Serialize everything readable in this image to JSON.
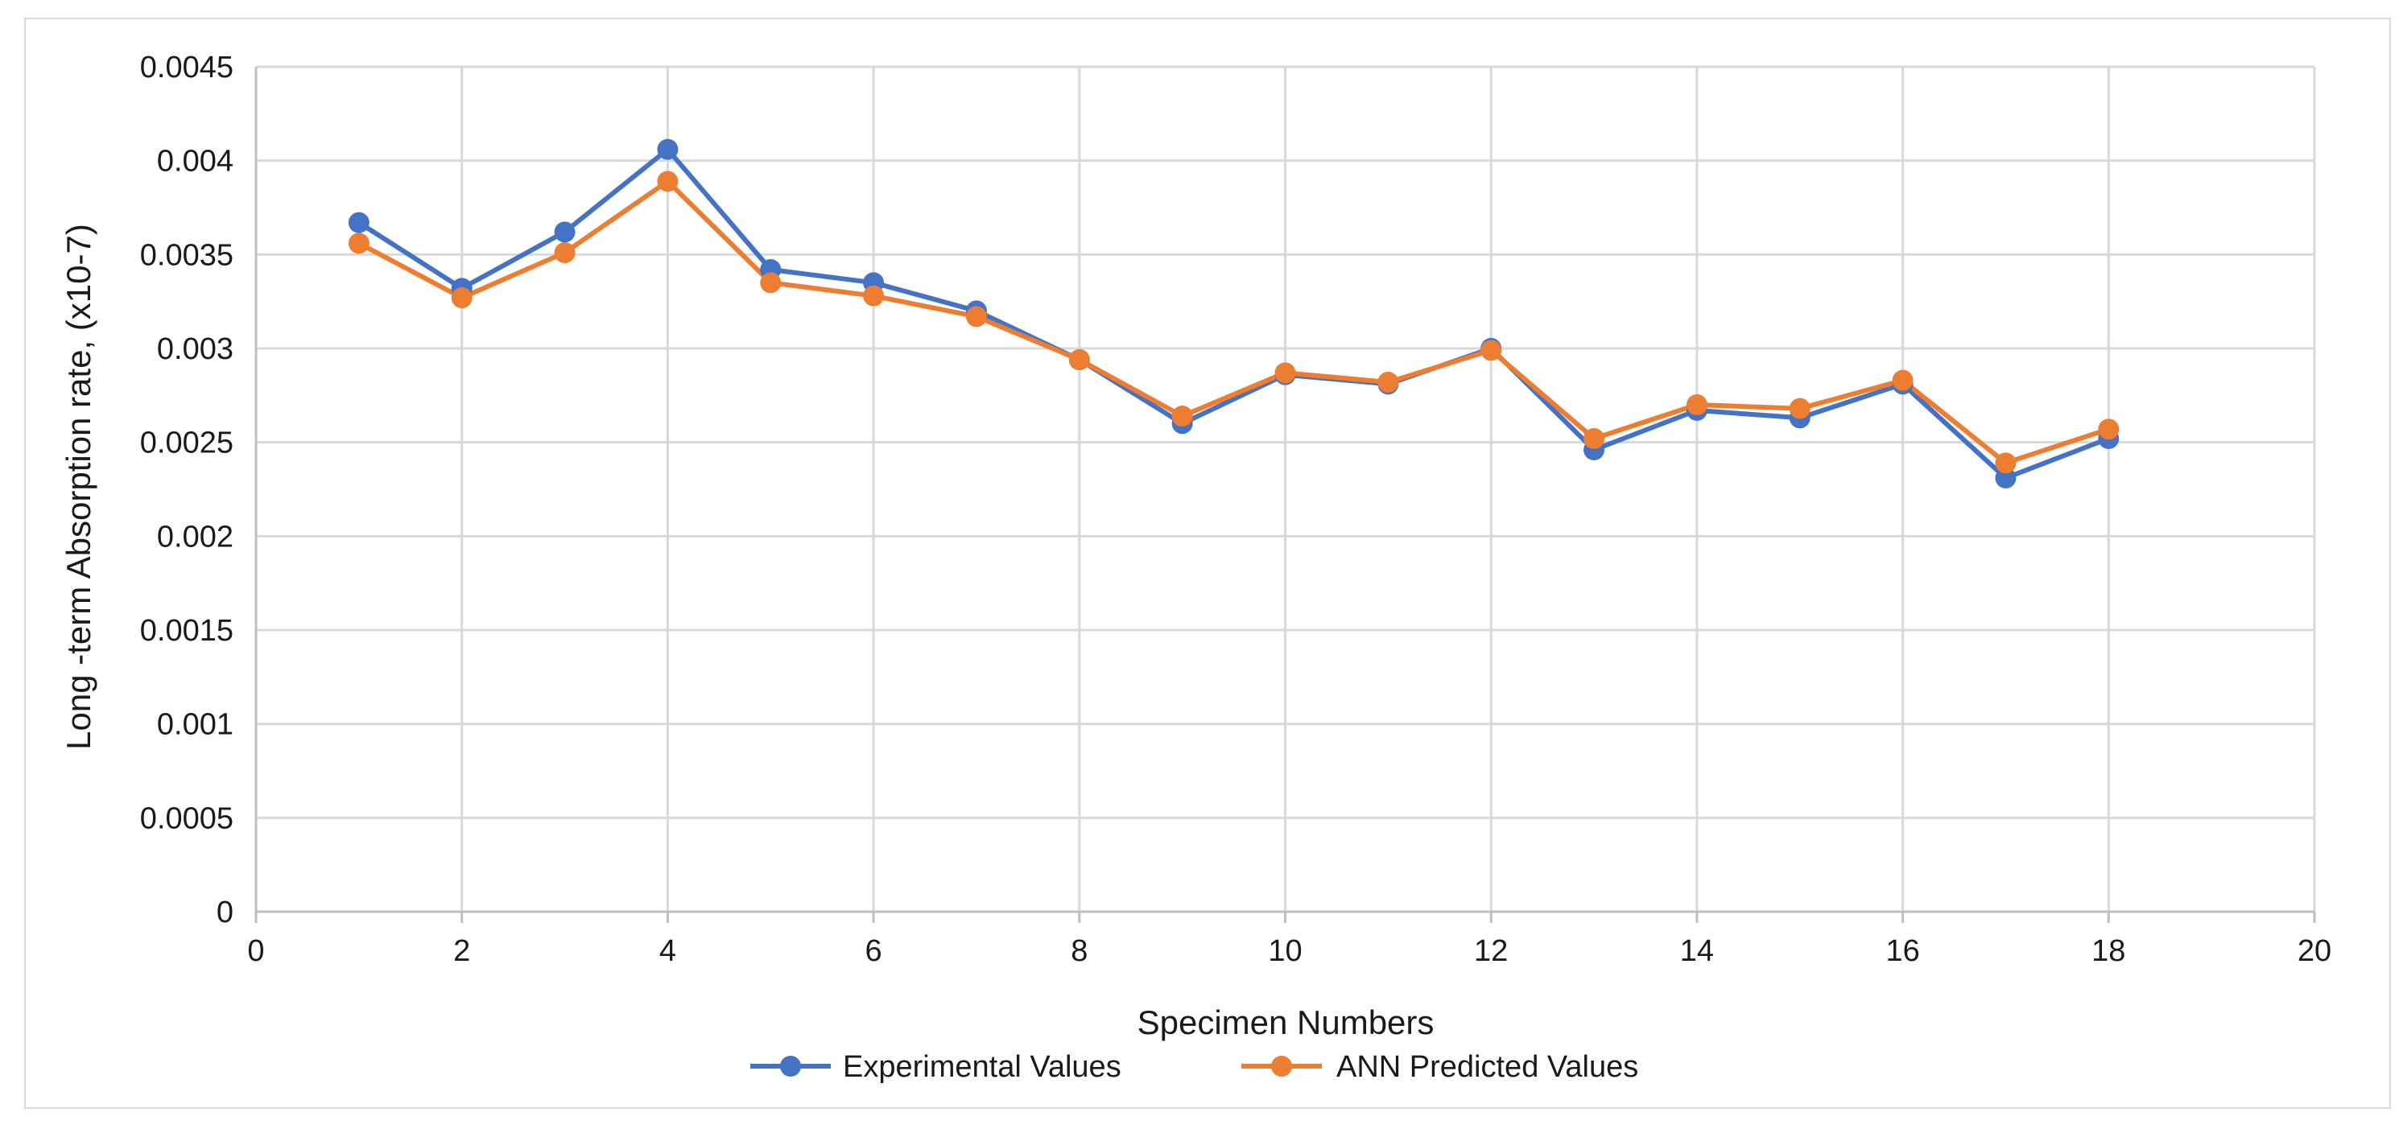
{
  "chart_data": {
    "type": "line",
    "title": "",
    "xlabel": "Specimen Numbers",
    "ylabel": "Long -term Absorption rate, (x10-7)",
    "xlim": [
      0,
      20
    ],
    "ylim": [
      0,
      0.0045
    ],
    "x_ticks": [
      0,
      2,
      4,
      6,
      8,
      10,
      12,
      14,
      16,
      18,
      20
    ],
    "y_ticks": [
      0,
      0.0005,
      0.001,
      0.0015,
      0.002,
      0.0025,
      0.003,
      0.0035,
      0.004,
      0.0045
    ],
    "x_tick_labels": [
      "0",
      "2",
      "4",
      "6",
      "8",
      "10",
      "12",
      "14",
      "16",
      "18",
      "20"
    ],
    "y_tick_labels": [
      "0",
      "0.0005",
      "0.001",
      "0.0015",
      "0.002",
      "0.0025",
      "0.003",
      "0.0035",
      "0.004",
      "0.0045"
    ],
    "grid": true,
    "legend_position": "bottom",
    "x": [
      1,
      2,
      3,
      4,
      5,
      6,
      7,
      8,
      9,
      10,
      11,
      12,
      13,
      14,
      15,
      16,
      17,
      18
    ],
    "series": [
      {
        "name": "Experimental Values",
        "color": "#4472C4",
        "values": [
          0.00367,
          0.00332,
          0.00362,
          0.00406,
          0.00342,
          0.00335,
          0.0032,
          0.00294,
          0.0026,
          0.00286,
          0.00281,
          0.003,
          0.00246,
          0.00267,
          0.00263,
          0.00281,
          0.00231,
          0.00252
        ]
      },
      {
        "name": "ANN Predicted Values",
        "color": "#ED7D31",
        "values": [
          0.00356,
          0.00327,
          0.00351,
          0.00389,
          0.00335,
          0.00328,
          0.00317,
          0.00294,
          0.00264,
          0.00287,
          0.00282,
          0.00299,
          0.00252,
          0.0027,
          0.00268,
          0.00283,
          0.00239,
          0.00257
        ]
      }
    ]
  },
  "colors": {
    "grid": "#d9d9d9",
    "axis": "#bfbfbf",
    "text": "#1a1a1a"
  }
}
